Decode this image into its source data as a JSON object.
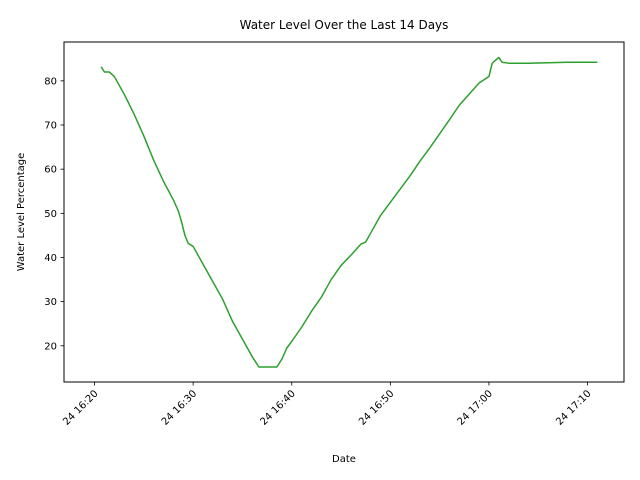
{
  "chart_data": {
    "type": "line",
    "title": "Water Level Over the Last 14 Days",
    "xlabel": "Date",
    "ylabel": "Water Level Percentage",
    "x_ticks": [
      "24 16:20",
      "24 16:30",
      "24 16:40",
      "24 16:50",
      "24 17:00",
      "24 17:10"
    ],
    "y_ticks": [
      20,
      30,
      40,
      50,
      60,
      70,
      80
    ],
    "xlim_minutes": [
      16.9,
      73.7
    ],
    "ylim": [
      11.8,
      88.8
    ],
    "grid": false,
    "legend": "none",
    "series": [
      {
        "color": "#2ca02c",
        "points": [
          [
            "16:20:40",
            83.2
          ],
          [
            "16:21:00",
            82.0
          ],
          [
            "16:21:30",
            82.0
          ],
          [
            "16:22:00",
            81.0
          ],
          [
            "16:23:00",
            77.0
          ],
          [
            "16:24:00",
            72.5
          ],
          [
            "16:25:00",
            67.5
          ],
          [
            "16:26:00",
            62.0
          ],
          [
            "16:27:00",
            57.2
          ],
          [
            "16:28:00",
            53.0
          ],
          [
            "16:28:30",
            50.5
          ],
          [
            "16:28:50",
            48.0
          ],
          [
            "16:29:10",
            45.0
          ],
          [
            "16:29:30",
            43.2
          ],
          [
            "16:30:00",
            42.5
          ],
          [
            "16:31:00",
            38.5
          ],
          [
            "16:32:00",
            34.5
          ],
          [
            "16:33:00",
            30.5
          ],
          [
            "16:34:00",
            25.5
          ],
          [
            "16:35:00",
            21.5
          ],
          [
            "16:36:00",
            17.5
          ],
          [
            "16:36:40",
            15.2
          ],
          [
            "16:37:30",
            15.2
          ],
          [
            "16:38:30",
            15.2
          ],
          [
            "16:39:00",
            17.0
          ],
          [
            "16:39:30",
            19.5
          ],
          [
            "16:40:00",
            21.0
          ],
          [
            "16:41:00",
            24.2
          ],
          [
            "16:42:00",
            27.8
          ],
          [
            "16:43:00",
            31.0
          ],
          [
            "16:44:00",
            35.0
          ],
          [
            "16:45:00",
            38.2
          ],
          [
            "16:46:00",
            40.5
          ],
          [
            "16:47:00",
            43.0
          ],
          [
            "16:47:30",
            43.5
          ],
          [
            "16:48:00",
            45.5
          ],
          [
            "16:49:00",
            49.5
          ],
          [
            "16:50:00",
            52.5
          ],
          [
            "16:51:00",
            55.5
          ],
          [
            "16:52:00",
            58.5
          ],
          [
            "16:53:00",
            61.8
          ],
          [
            "16:54:00",
            64.8
          ],
          [
            "16:55:00",
            68.0
          ],
          [
            "16:56:00",
            71.2
          ],
          [
            "16:57:00",
            74.5
          ],
          [
            "16:58:00",
            77.0
          ],
          [
            "16:59:00",
            79.5
          ],
          [
            "17:00:00",
            81.0
          ],
          [
            "17:00:20",
            84.0
          ],
          [
            "17:01:00",
            85.3
          ],
          [
            "17:01:20",
            84.2
          ],
          [
            "17:02:00",
            84.0
          ],
          [
            "17:04:00",
            84.0
          ],
          [
            "17:06:00",
            84.1
          ],
          [
            "17:08:00",
            84.2
          ],
          [
            "17:11:00",
            84.2
          ]
        ]
      }
    ]
  }
}
